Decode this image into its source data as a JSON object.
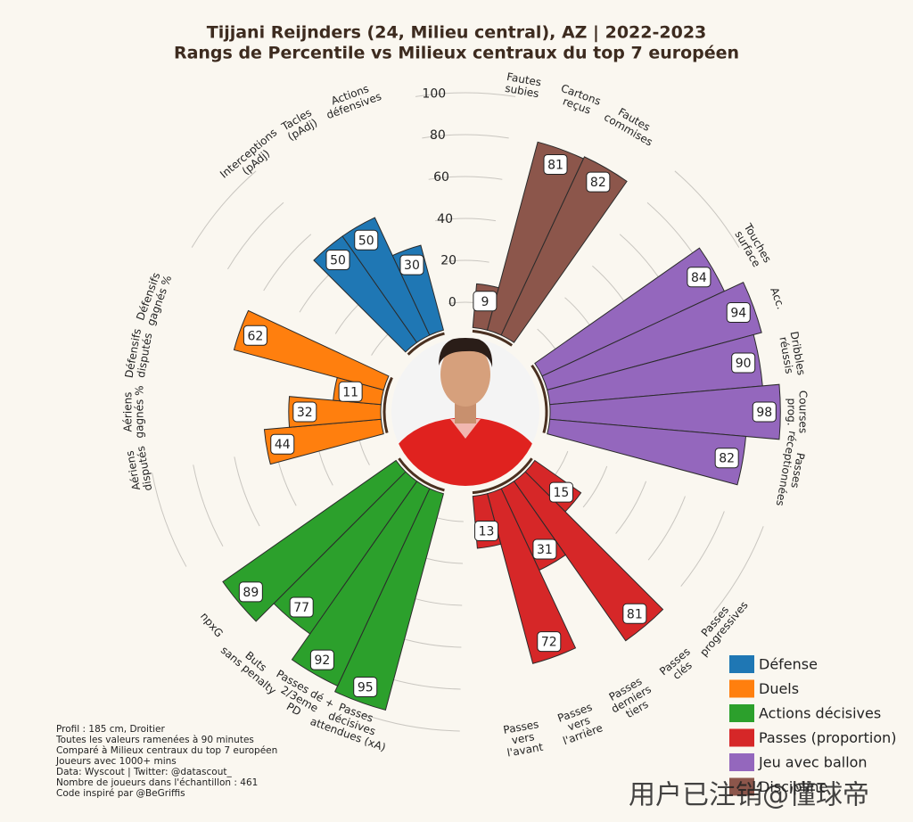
{
  "chart_data": {
    "type": "polar-bar",
    "title": "Tijjani Reijnders (24, Milieu central), AZ | 2022-2023",
    "subtitle": "Rangs de Percentile vs Milieux centraux du top 7 européen",
    "rlim": [
      0,
      100
    ],
    "rticks": [
      0,
      20,
      40,
      60,
      80,
      100
    ],
    "series": [
      {
        "name": "Discipline",
        "color": "#8c564b",
        "categories": [
          "Fautes\nsubies",
          "Cartons\nreçus",
          "Fautes\ncommises"
        ],
        "values": [
          9,
          81,
          82
        ]
      },
      {
        "name": "Jeu avec ballon",
        "color": "#9467bd",
        "categories": [
          "Touches\nsurface",
          "Acc.",
          "Dribbles\nréussis",
          "Courses\nprog.",
          "Passes\nréceptionnées"
        ],
        "values": [
          84,
          94,
          90,
          98,
          82
        ]
      },
      {
        "name": "Passes (proportion)",
        "color": "#d62728",
        "categories": [
          "Passes\nprogressives",
          "Passes\nclés",
          "Passes\nderniers\ntiers",
          "Passes\nvers\nl'arrière",
          "Passes\nvers\nl'avant"
        ],
        "values": [
          15,
          81,
          31,
          72,
          13
        ]
      },
      {
        "name": "Actions décisives",
        "color": "#2ca02c",
        "categories": [
          "Passes\ndécisives\nattendues (xA)",
          "Passes dé +\n2/3eme\nPD",
          "Buts\nsans penalty",
          "npxG"
        ],
        "values": [
          95,
          92,
          77,
          89
        ]
      },
      {
        "name": "Duels",
        "color": "#ff7f0e",
        "categories": [
          "Aériens\ndisputés",
          "Aériens\ngagnés %",
          "Défensifs\ndisputés",
          "Défensifs\ngagnés %"
        ],
        "values": [
          44,
          32,
          11,
          62
        ]
      },
      {
        "name": "Défense",
        "color": "#1f77b4",
        "categories": [
          "Interceptions\n(pAdj)",
          "Tacles\n(pAdj)",
          "Actions\ndéfensives"
        ],
        "values": [
          50,
          50,
          30
        ]
      }
    ],
    "legend_order": [
      5,
      4,
      3,
      2,
      1,
      0
    ],
    "legend": "lower right"
  },
  "notes": [
    "Profil : 185 cm, Droitier",
    "Toutes les valeurs ramenées à 90 minutes",
    "Comparé à Milieux centraux du top 7 européen",
    "Joueurs avec 1000+ mins",
    "Data: Wyscout | Twitter: @datascout_",
    "Nombre de joueurs dans l'échantillon : 461",
    "Code inspiré par @BeGriffis"
  ],
  "watermark": "用户已注销@懂球帝"
}
